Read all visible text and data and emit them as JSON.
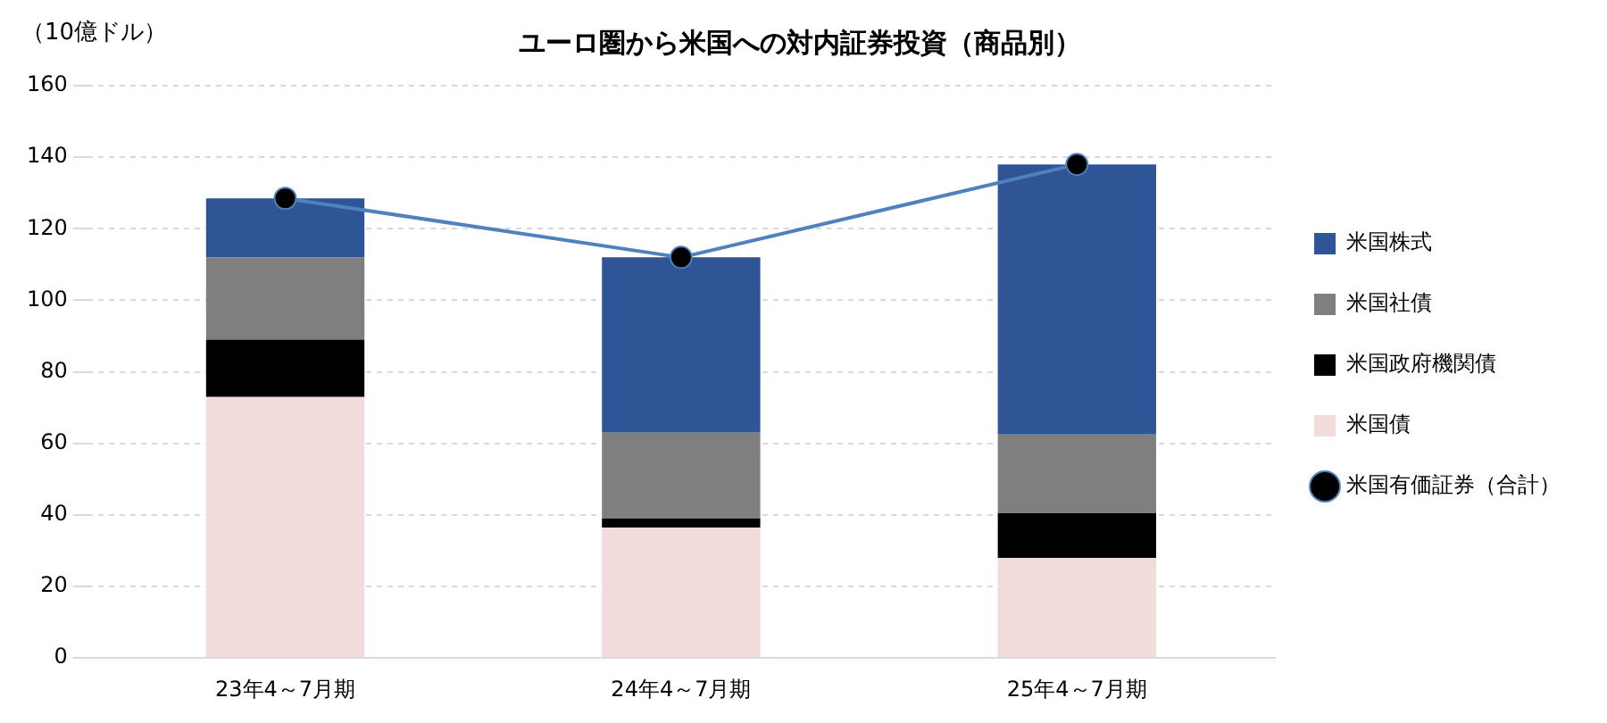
{
  "chart_data": {
    "type": "bar",
    "title": "ユーロ圏から米国への対内証券投資（商品別）",
    "ylabel": "（10億ドル）",
    "categories": [
      "23年4～7月期",
      "24年4～7月期",
      "25年4～7月期"
    ],
    "stacked": true,
    "series": [
      {
        "name": "米国債",
        "color": "#f2dcdb",
        "values": [
          73,
          36.5,
          28
        ]
      },
      {
        "name": "米国政府機関債",
        "color": "#000000",
        "values": [
          16,
          2.5,
          12.5
        ]
      },
      {
        "name": "米国社債",
        "color": "#7f7f7f",
        "values": [
          23,
          24,
          22
        ]
      },
      {
        "name": "米国株式",
        "color": "#2f5597",
        "values": [
          16.5,
          49,
          75.5
        ]
      },
      {
        "name": "米国有価証券（合計）",
        "type": "line",
        "color": "#4f81bd",
        "values": [
          128.5,
          112,
          138
        ],
        "marker": "circle"
      }
    ],
    "ylim": [
      0,
      160
    ],
    "yticks": [
      0,
      20,
      40,
      60,
      80,
      100,
      120,
      140,
      160
    ],
    "grid": "y",
    "legend": "right"
  }
}
